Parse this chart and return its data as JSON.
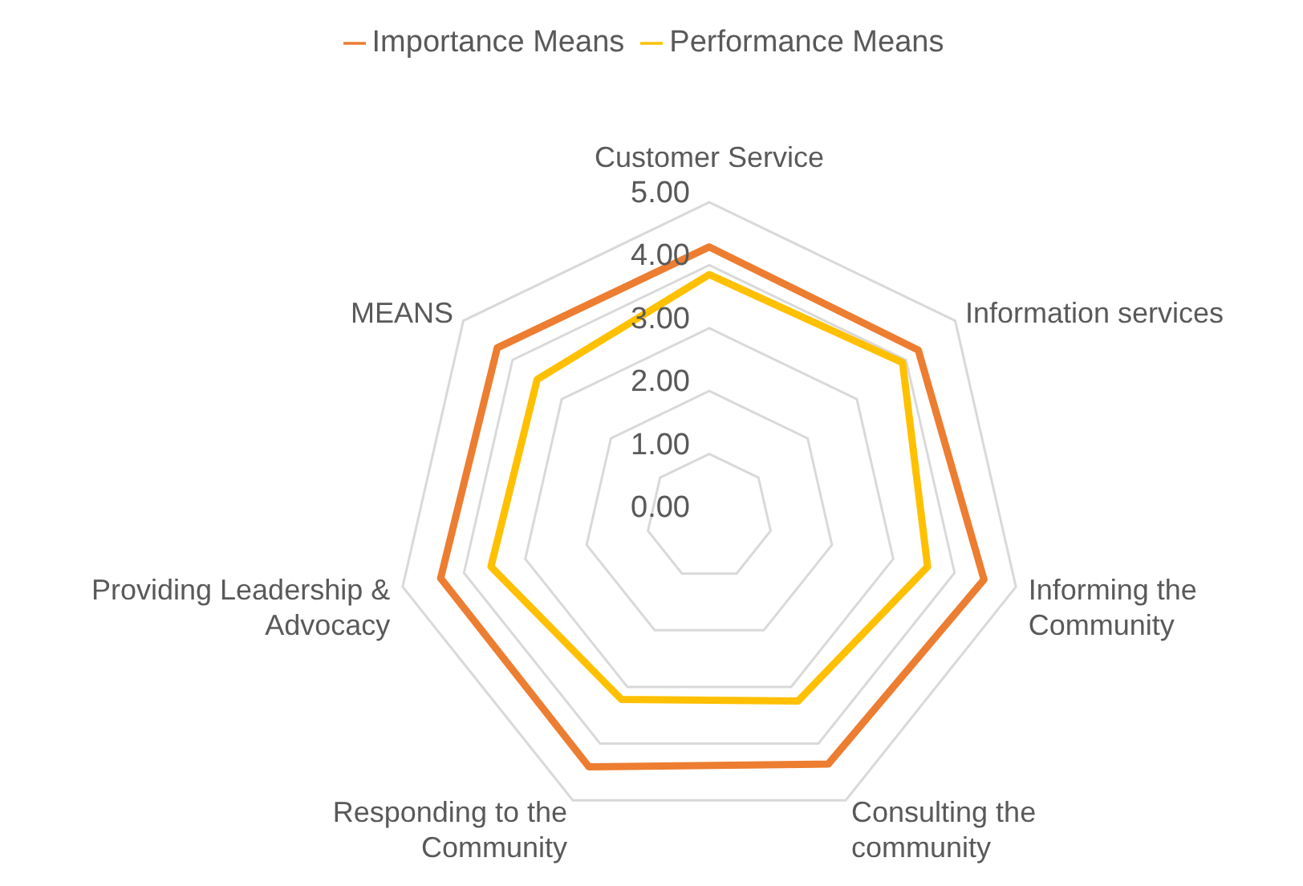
{
  "chart_data": {
    "type": "radar",
    "categories": [
      "Customer Service",
      "Information services",
      "Informing the Community",
      "Consulting the community",
      "Responding to the Community",
      "Providing Leadership & Advocacy",
      "MEANS"
    ],
    "series": [
      {
        "name": "Importance Means",
        "color": "#ed7d31",
        "values": [
          4.29,
          4.25,
          4.48,
          4.36,
          4.41,
          4.38,
          4.31
        ]
      },
      {
        "name": "Performance Means",
        "color": "#ffc000",
        "values": [
          3.85,
          3.93,
          3.56,
          3.25,
          3.22,
          3.56,
          3.5
        ]
      }
    ],
    "ylim": [
      0,
      5
    ],
    "yticks": [
      {
        "value": 0,
        "label": "0.00"
      },
      {
        "value": 1,
        "label": "1.00"
      },
      {
        "value": 2,
        "label": "2.00"
      },
      {
        "value": 3,
        "label": "3.00"
      },
      {
        "value": 4,
        "label": "4.00"
      },
      {
        "value": 5,
        "label": "5.00"
      }
    ],
    "grid": true,
    "legend": "top",
    "marker": "none"
  }
}
